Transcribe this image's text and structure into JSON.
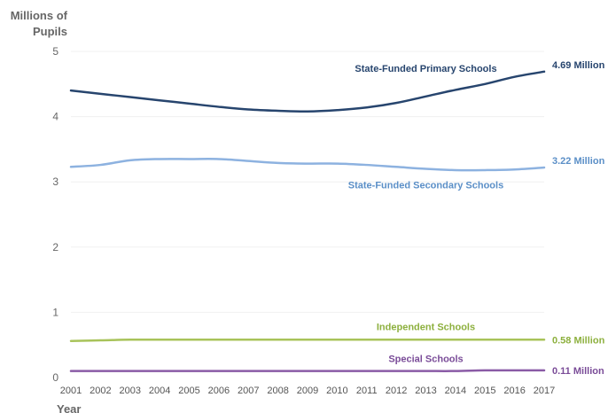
{
  "chart_data": {
    "type": "line",
    "ylabel": [
      "Millions of",
      "Pupils"
    ],
    "xlabel": "Year",
    "ylim": [
      0,
      5
    ],
    "yticks": [
      0,
      1,
      2,
      3,
      4,
      5
    ],
    "x": [
      2001,
      2002,
      2003,
      2004,
      2005,
      2006,
      2007,
      2008,
      2009,
      2010,
      2011,
      2012,
      2013,
      2014,
      2015,
      2016,
      2017
    ],
    "grid": true,
    "series": [
      {
        "name": "State-Funded Primary Schools",
        "end_label": "4.69 Million",
        "color": "#27456e",
        "values": [
          4.4,
          4.35,
          4.3,
          4.25,
          4.2,
          4.15,
          4.11,
          4.09,
          4.08,
          4.1,
          4.14,
          4.21,
          4.31,
          4.41,
          4.5,
          4.61,
          4.69
        ]
      },
      {
        "name": "State-Funded Secondary Schools",
        "end_label": "3.22 Million",
        "color": "#8db2e0",
        "label_color": "#5b8fc7",
        "values": [
          3.23,
          3.26,
          3.33,
          3.35,
          3.35,
          3.35,
          3.32,
          3.29,
          3.28,
          3.28,
          3.26,
          3.23,
          3.2,
          3.18,
          3.18,
          3.19,
          3.22
        ]
      },
      {
        "name": "Independent Schools",
        "end_label": "0.58 Million",
        "color": "#a8c35a",
        "label_color": "#8db03e",
        "values": [
          0.56,
          0.57,
          0.58,
          0.58,
          0.58,
          0.58,
          0.58,
          0.58,
          0.58,
          0.58,
          0.58,
          0.58,
          0.58,
          0.58,
          0.58,
          0.58,
          0.58
        ]
      },
      {
        "name": "Special Schools",
        "end_label": "0.11 Million",
        "color": "#8a5ba6",
        "label_color": "#7a4c98",
        "values": [
          0.1,
          0.1,
          0.1,
          0.1,
          0.1,
          0.1,
          0.1,
          0.1,
          0.1,
          0.1,
          0.1,
          0.1,
          0.1,
          0.1,
          0.11,
          0.11,
          0.11
        ]
      }
    ]
  }
}
